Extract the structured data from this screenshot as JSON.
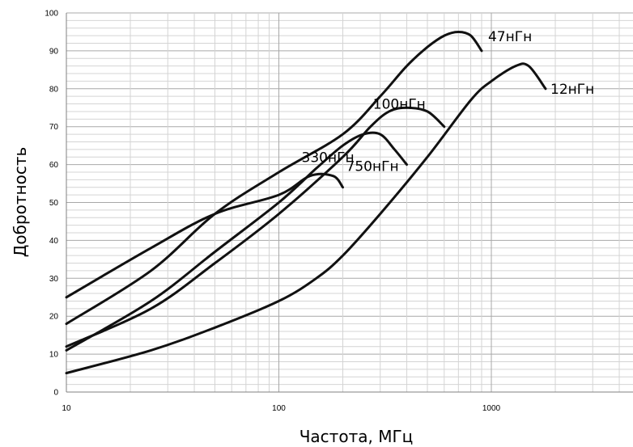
{
  "chart_data": {
    "type": "line",
    "xlabel": "Частота, МГц",
    "ylabel": "Добротность",
    "x_scale": "log",
    "xlim": [
      10,
      5000
    ],
    "ylim": [
      0,
      100
    ],
    "grid": true,
    "x_ticks": [
      10,
      100,
      1000
    ],
    "x_tick_labels": [
      "10",
      "100",
      "1000"
    ],
    "y_ticks": [
      0,
      10,
      20,
      30,
      40,
      50,
      60,
      70,
      80,
      90,
      100
    ],
    "series": [
      {
        "name": "12нГн",
        "x": [
          10,
          25,
          50,
          100,
          150,
          200,
          300,
          500,
          800,
          1000,
          1300,
          1500,
          1800
        ],
        "y": [
          5,
          11,
          17,
          24,
          30,
          36,
          47,
          62,
          77,
          82,
          86,
          86,
          80
        ]
      },
      {
        "name": "47нГн",
        "x": [
          10,
          25,
          50,
          100,
          200,
          300,
          400,
          500,
          600,
          700,
          800,
          900
        ],
        "y": [
          18,
          32,
          47,
          58,
          68,
          78,
          86,
          91,
          94,
          95,
          94,
          90
        ]
      },
      {
        "name": "100нГн",
        "x": [
          10,
          25,
          50,
          100,
          200,
          270,
          330,
          400,
          500,
          600
        ],
        "y": [
          12,
          22,
          34,
          47,
          62,
          70,
          74,
          75,
          74,
          70
        ]
      },
      {
        "name": "330нГн",
        "x": [
          10,
          25,
          50,
          100,
          150,
          200,
          250,
          300,
          350,
          400
        ],
        "y": [
          11,
          24,
          37,
          50,
          59,
          65,
          68,
          68,
          64,
          60
        ]
      },
      {
        "name": "750нГн",
        "x": [
          10,
          25,
          50,
          100,
          140,
          180,
          200
        ],
        "y": [
          25,
          38,
          47,
          52,
          57,
          57,
          54
        ]
      }
    ]
  }
}
